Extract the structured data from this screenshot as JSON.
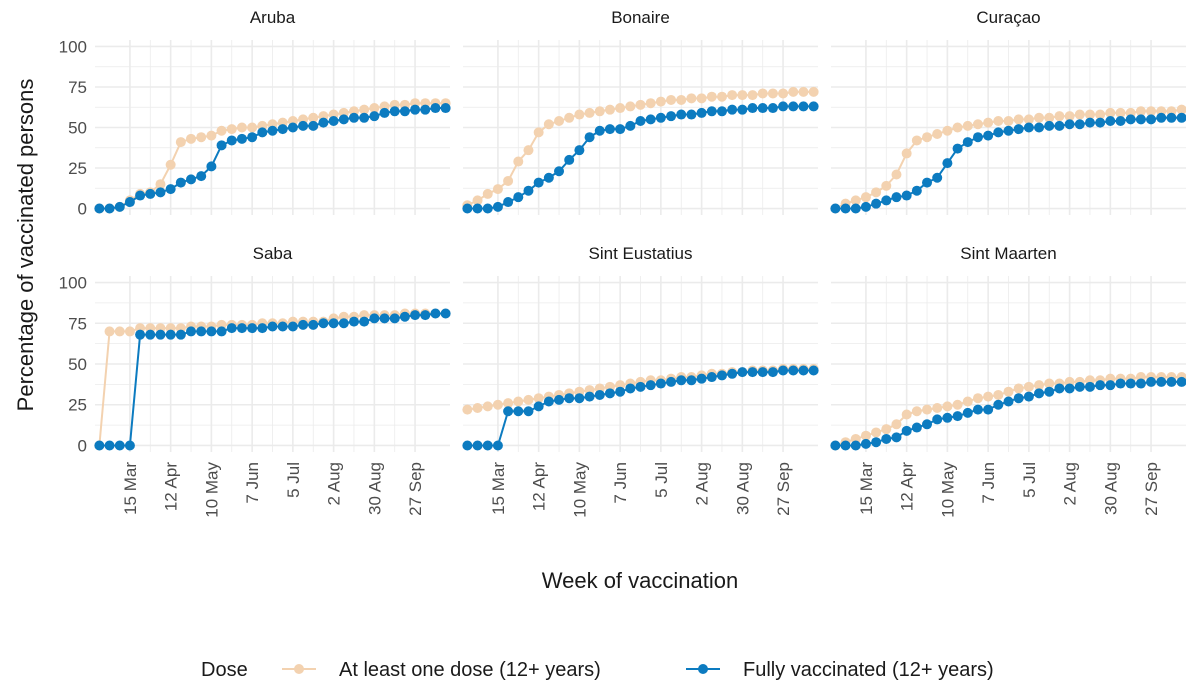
{
  "chart_data": {
    "type": "line",
    "y_label": "Percentage of vaccinated persons",
    "x_label": "Week of vaccination",
    "legend_title": "Dose",
    "series": [
      {
        "name": "At least one dose (12+ years)",
        "color": "#f3d2b0"
      },
      {
        "name": "Fully vaccinated (12+ years)",
        "color": "#0c7bc0"
      }
    ],
    "x": [
      "22 Feb",
      "1 Mar",
      "8 Mar",
      "15 Mar",
      "22 Mar",
      "29 Mar",
      "5 Apr",
      "12 Apr",
      "19 Apr",
      "26 Apr",
      "3 May",
      "10 May",
      "17 May",
      "24 May",
      "31 May",
      "7 Jun",
      "14 Jun",
      "21 Jun",
      "28 Jun",
      "5 Jul",
      "12 Jul",
      "19 Jul",
      "26 Jul",
      "2 Aug",
      "9 Aug",
      "16 Aug",
      "23 Aug",
      "30 Aug",
      "6 Sep",
      "13 Sep",
      "20 Sep",
      "27 Sep",
      "4 Oct",
      "11 Oct",
      "18 Oct"
    ],
    "xlim": [
      "19 Feb",
      "21 Oct"
    ],
    "xticks": [
      "15 Mar",
      "12 Apr",
      "10 May",
      "7 Jun",
      "5 Jul",
      "2 Aug",
      "30 Aug",
      "27 Sep"
    ],
    "ylim": [
      -4,
      104
    ],
    "yticks": [
      0,
      25,
      50,
      75,
      100
    ],
    "grid": true,
    "panels": [
      {
        "title": "Aruba",
        "series": [
          {
            "values": [
              0,
              0,
              1,
              5,
              9,
              10,
              15,
              27,
              41,
              43,
              44,
              45,
              48,
              49,
              50,
              50,
              51,
              52,
              53,
              54,
              55,
              56,
              57,
              58,
              59,
              60,
              61,
              62,
              63,
              64,
              64,
              65,
              65,
              65,
              65
            ]
          },
          {
            "values": [
              0,
              0,
              1,
              4,
              8,
              9,
              10,
              12,
              16,
              18,
              20,
              26,
              39,
              42,
              43,
              44,
              47,
              48,
              49,
              50,
              51,
              51,
              53,
              54,
              55,
              56,
              56,
              57,
              59,
              60,
              60,
              61,
              61,
              62,
              62
            ]
          }
        ]
      },
      {
        "title": "Bonaire",
        "series": [
          {
            "values": [
              2,
              5,
              9,
              12,
              17,
              29,
              36,
              47,
              52,
              54,
              56,
              58,
              59,
              60,
              61,
              62,
              63,
              64,
              65,
              66,
              67,
              67,
              68,
              68,
              69,
              69,
              70,
              70,
              70,
              71,
              71,
              71,
              72,
              72,
              72
            ]
          },
          {
            "values": [
              0,
              0,
              0,
              1,
              4,
              7,
              11,
              16,
              19,
              23,
              30,
              36,
              44,
              48,
              49,
              49,
              51,
              54,
              55,
              56,
              57,
              58,
              58,
              59,
              60,
              60,
              61,
              61,
              62,
              62,
              62,
              63,
              63,
              63,
              63
            ]
          }
        ]
      },
      {
        "title": "Curaçao",
        "series": [
          {
            "values": [
              0,
              3,
              5,
              7,
              10,
              14,
              21,
              34,
              42,
              44,
              46,
              48,
              50,
              51,
              52,
              53,
              54,
              54,
              55,
              55,
              56,
              56,
              57,
              57,
              58,
              58,
              58,
              59,
              59,
              59,
              60,
              60,
              60,
              60,
              61
            ]
          },
          {
            "values": [
              0,
              0,
              0,
              1,
              3,
              5,
              7,
              8,
              11,
              16,
              19,
              28,
              37,
              41,
              44,
              45,
              47,
              48,
              49,
              50,
              50,
              51,
              51,
              52,
              52,
              53,
              53,
              54,
              54,
              55,
              55,
              55,
              56,
              56,
              56
            ]
          }
        ]
      },
      {
        "title": "Saba",
        "series": [
          {
            "values": [
              0,
              70,
              70,
              70,
              72,
              72,
              72,
              72,
              72,
              73,
              73,
              73,
              74,
              74,
              74,
              74,
              75,
              75,
              75,
              76,
              76,
              76,
              76,
              78,
              79,
              79,
              80,
              80,
              80,
              80,
              81,
              81,
              81,
              81,
              81
            ]
          },
          {
            "values": [
              0,
              0,
              0,
              0,
              68,
              68,
              68,
              68,
              68,
              70,
              70,
              70,
              70,
              72,
              72,
              72,
              72,
              73,
              73,
              73,
              74,
              74,
              75,
              75,
              75,
              76,
              76,
              78,
              78,
              78,
              79,
              80,
              80,
              81,
              81
            ]
          }
        ]
      },
      {
        "title": "Sint Eustatius",
        "series": [
          {
            "values": [
              22,
              23,
              24,
              25,
              26,
              27,
              28,
              29,
              30,
              31,
              32,
              33,
              34,
              35,
              36,
              37,
              38,
              39,
              40,
              40,
              41,
              42,
              42,
              43,
              44,
              44,
              45,
              45,
              46,
              46,
              46,
              47,
              47,
              47,
              47
            ]
          },
          {
            "values": [
              0,
              0,
              0,
              0,
              21,
              21,
              21,
              24,
              27,
              28,
              29,
              29,
              30,
              31,
              32,
              33,
              35,
              36,
              37,
              38,
              39,
              40,
              40,
              41,
              42,
              43,
              44,
              45,
              45,
              45,
              45,
              46,
              46,
              46,
              46
            ]
          }
        ]
      },
      {
        "title": "Sint Maarten",
        "series": [
          {
            "values": [
              0,
              2,
              4,
              6,
              8,
              10,
              13,
              19,
              21,
              22,
              23,
              24,
              25,
              27,
              29,
              30,
              31,
              33,
              35,
              36,
              37,
              38,
              38,
              39,
              39,
              40,
              40,
              41,
              41,
              41,
              42,
              42,
              42,
              42,
              42
            ]
          },
          {
            "values": [
              0,
              0,
              0,
              1,
              2,
              4,
              5,
              9,
              11,
              13,
              16,
              17,
              18,
              20,
              22,
              22,
              25,
              27,
              29,
              30,
              32,
              33,
              35,
              35,
              36,
              36,
              37,
              37,
              38,
              38,
              38,
              39,
              39,
              39,
              39
            ]
          }
        ]
      }
    ]
  }
}
